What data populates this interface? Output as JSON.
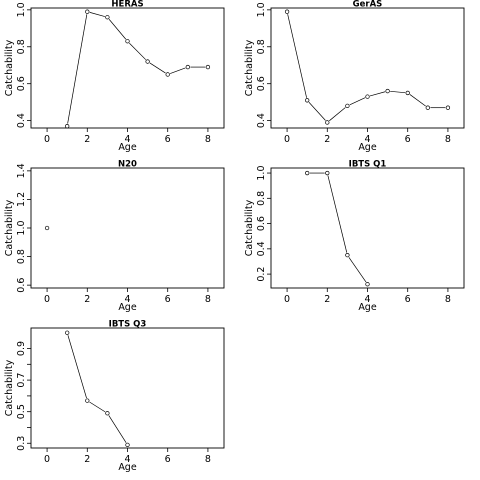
{
  "chart_data": [
    {
      "type": "line",
      "title": "HERAS",
      "xlabel": "Age",
      "ylabel": "Catchability",
      "xlim": [
        -0.8,
        8.8
      ],
      "ylim": [
        0.36,
        1.01
      ],
      "xticks": [
        0,
        2,
        4,
        6,
        8
      ],
      "yticks": [
        0.4,
        0.6,
        0.8,
        1.0
      ],
      "ytick_labels": [
        "0.4",
        "0.6",
        "0.8",
        "1.0"
      ],
      "grid": false,
      "series": [
        {
          "x": [
            1,
            2,
            3,
            4,
            5,
            6,
            7,
            8
          ],
          "values": [
            0.37,
            0.99,
            0.96,
            0.83,
            0.72,
            0.65,
            0.69,
            0.69
          ]
        }
      ]
    },
    {
      "type": "line",
      "title": "GerAS",
      "xlabel": "Age",
      "ylabel": "Catchability",
      "xlim": [
        -0.8,
        8.8
      ],
      "ylim": [
        0.36,
        1.01
      ],
      "xticks": [
        0,
        2,
        4,
        6,
        8
      ],
      "yticks": [
        0.4,
        0.6,
        0.8,
        1.0
      ],
      "ytick_labels": [
        "0.4",
        "0.6",
        "0.8",
        "1.0"
      ],
      "grid": false,
      "series": [
        {
          "x": [
            0,
            1,
            2,
            3,
            4,
            5,
            6,
            7,
            8
          ],
          "values": [
            0.99,
            0.51,
            0.39,
            0.48,
            0.53,
            0.56,
            0.55,
            0.47,
            0.47
          ]
        }
      ]
    },
    {
      "type": "scatter",
      "title": "N20",
      "xlabel": "Age",
      "ylabel": "Catchability",
      "xlim": [
        -0.8,
        8.8
      ],
      "ylim": [
        0.58,
        1.42
      ],
      "xticks": [
        0,
        2,
        4,
        6,
        8
      ],
      "yticks": [
        0.6,
        0.8,
        1.0,
        1.2,
        1.4
      ],
      "ytick_labels": [
        "0.6",
        "0.8",
        "1.0",
        "1.2",
        "1.4"
      ],
      "grid": false,
      "series": [
        {
          "x": [
            0
          ],
          "values": [
            1.0
          ]
        }
      ]
    },
    {
      "type": "line",
      "title": "IBTS Q1",
      "xlabel": "Age",
      "ylabel": "Catchability",
      "xlim": [
        -0.8,
        8.8
      ],
      "ylim": [
        0.09,
        1.04
      ],
      "xticks": [
        0,
        2,
        4,
        6,
        8
      ],
      "yticks": [
        0.2,
        0.4,
        0.6,
        0.8,
        1.0
      ],
      "ytick_labels": [
        "0.2",
        "0.4",
        "0.6",
        "0.8",
        "1.0"
      ],
      "grid": false,
      "series": [
        {
          "x": [
            1,
            2,
            3,
            4
          ],
          "values": [
            1.0,
            1.0,
            0.35,
            0.12
          ]
        }
      ]
    },
    {
      "type": "line",
      "title": "IBTS Q3",
      "xlabel": "Age",
      "ylabel": "Catchability",
      "xlim": [
        -0.8,
        8.8
      ],
      "ylim": [
        0.27,
        1.03
      ],
      "xticks": [
        0,
        2,
        4,
        6,
        8
      ],
      "yticks": [
        0.3,
        0.4,
        0.5,
        0.6,
        0.7,
        0.8,
        0.9
      ],
      "ytick_labels": [
        "0.3",
        "",
        "0.5",
        "",
        "0.7",
        "",
        "0.9"
      ],
      "grid": false,
      "series": [
        {
          "x": [
            1,
            2,
            3,
            4
          ],
          "values": [
            1.0,
            0.57,
            0.49,
            0.29
          ]
        }
      ]
    }
  ]
}
